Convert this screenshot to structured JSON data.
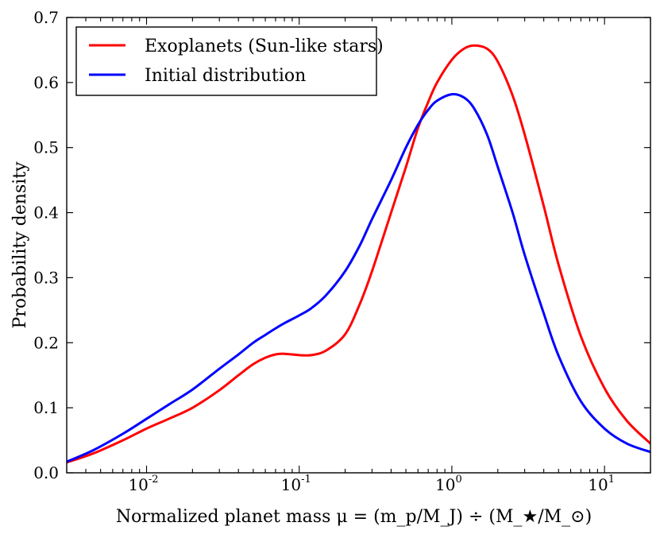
{
  "chart_data": {
    "type": "line",
    "title": "",
    "xlabel": "Normalized planet mass μ = (m_p/M_J) ÷ (M_★/M_⊙)",
    "ylabel": "Probability density",
    "xscale": "log",
    "xlim": [
      0.003,
      20
    ],
    "ylim": [
      0.0,
      0.7
    ],
    "yticks": [
      0.0,
      0.1,
      0.2,
      0.3,
      0.4,
      0.5,
      0.6,
      0.7
    ],
    "ytick_labels": [
      "0.0",
      "0.1",
      "0.2",
      "0.3",
      "0.4",
      "0.5",
      "0.6",
      "0.7"
    ],
    "xticks": [
      0.01,
      0.1,
      1,
      10
    ],
    "xtick_labels": [
      {
        "base": "10",
        "exp": "-2"
      },
      {
        "base": "10",
        "exp": "-1"
      },
      {
        "base": "10",
        "exp": "0"
      },
      {
        "base": "10",
        "exp": "1"
      }
    ],
    "grid": false,
    "legend_position": "top-left",
    "series": [
      {
        "name": "Exoplanets (Sun-like stars)",
        "color": "#ff0000",
        "x": [
          0.003,
          0.0045,
          0.007,
          0.01,
          0.014,
          0.02,
          0.03,
          0.04,
          0.05,
          0.06,
          0.07,
          0.08,
          0.1,
          0.12,
          0.15,
          0.2,
          0.25,
          0.3,
          0.4,
          0.5,
          0.6,
          0.7,
          0.8,
          1.0,
          1.2,
          1.4,
          1.7,
          2.0,
          2.5,
          3.0,
          4.0,
          5.0,
          7.0,
          10.0,
          14.0,
          20.0
        ],
        "values": [
          0.016,
          0.03,
          0.05,
          0.068,
          0.083,
          0.1,
          0.127,
          0.15,
          0.167,
          0.177,
          0.182,
          0.183,
          0.181,
          0.181,
          0.188,
          0.213,
          0.26,
          0.31,
          0.4,
          0.47,
          0.53,
          0.57,
          0.6,
          0.635,
          0.652,
          0.657,
          0.652,
          0.632,
          0.58,
          0.52,
          0.41,
          0.32,
          0.21,
          0.13,
          0.08,
          0.045
        ]
      },
      {
        "name": "Initial distribution",
        "color": "#0000ff",
        "x": [
          0.003,
          0.0045,
          0.007,
          0.01,
          0.014,
          0.02,
          0.03,
          0.04,
          0.05,
          0.06,
          0.07,
          0.08,
          0.1,
          0.12,
          0.15,
          0.2,
          0.25,
          0.3,
          0.4,
          0.5,
          0.6,
          0.7,
          0.8,
          1.0,
          1.2,
          1.4,
          1.7,
          2.0,
          2.5,
          3.0,
          4.0,
          5.0,
          7.0,
          10.0,
          14.0,
          20.0
        ],
        "values": [
          0.017,
          0.035,
          0.06,
          0.083,
          0.105,
          0.128,
          0.16,
          0.182,
          0.2,
          0.212,
          0.222,
          0.23,
          0.242,
          0.253,
          0.273,
          0.31,
          0.35,
          0.39,
          0.45,
          0.5,
          0.535,
          0.558,
          0.572,
          0.582,
          0.577,
          0.56,
          0.52,
          0.47,
          0.4,
          0.335,
          0.245,
          0.18,
          0.11,
          0.068,
          0.045,
          0.032
        ]
      }
    ]
  }
}
